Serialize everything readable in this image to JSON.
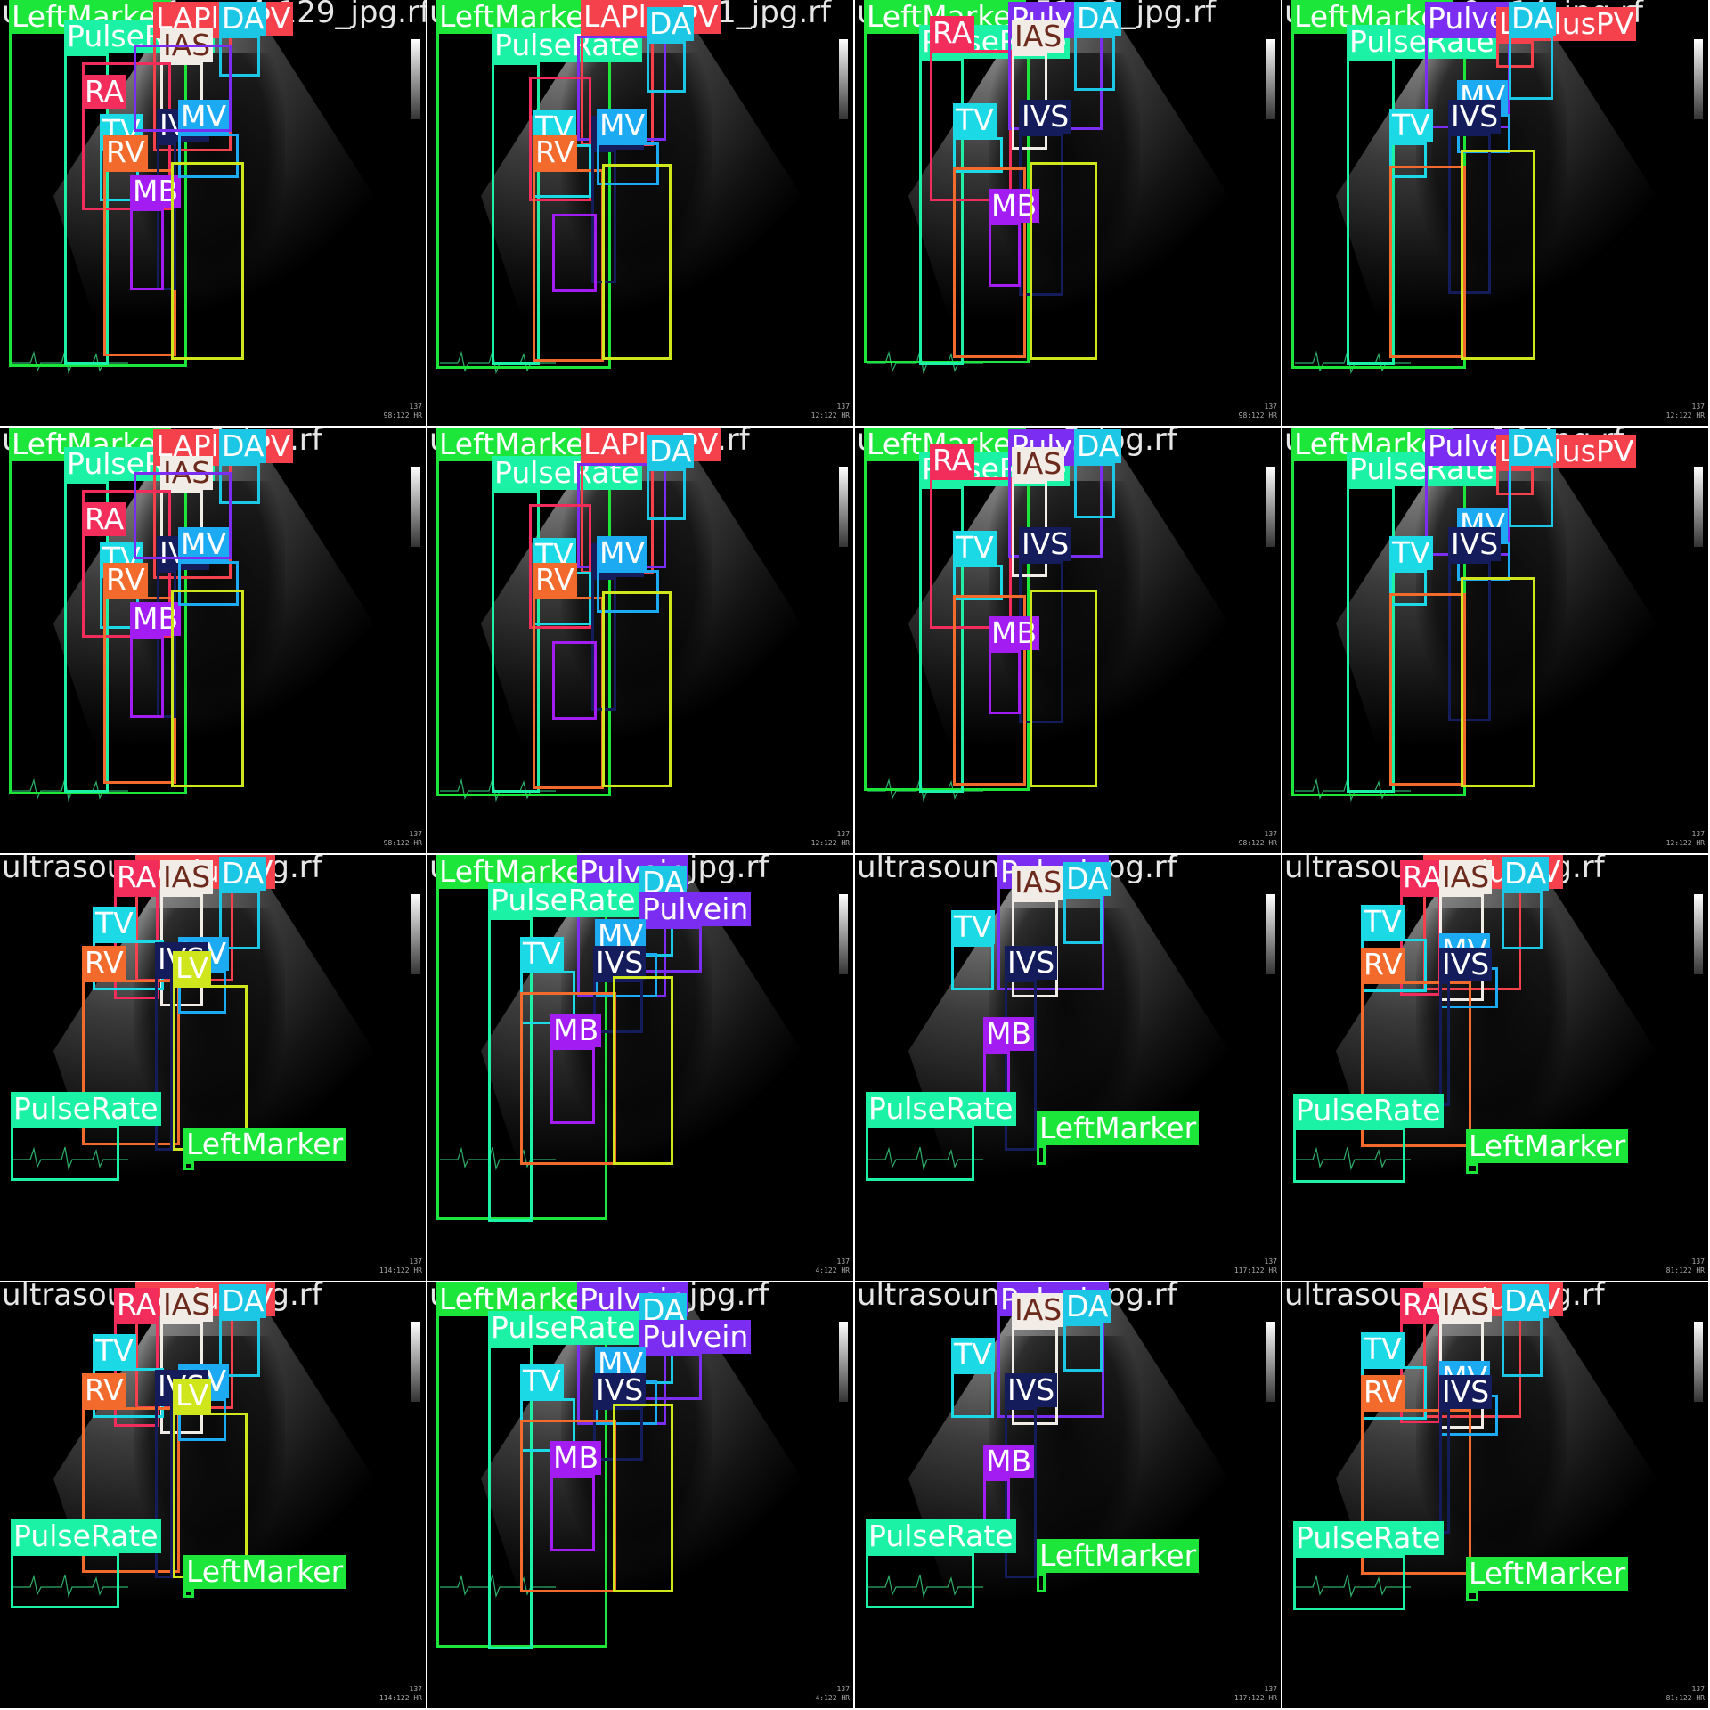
{
  "class_colors": {
    "LeftMarker": "#1ce63a",
    "PulseRate": "#1cf2a6",
    "LAPlusPV": "#f5414c",
    "DA": "#1cc7e6",
    "IAS": "#f2ece6",
    "RA": "#f22d5c",
    "TV": "#1cd9e6",
    "RV": "#f26b2d",
    "IVS": "#141c5c",
    "MB": "#a31cf2",
    "MV": "#1caaf2",
    "Pulvein": "#7b2df2",
    "LV": "#cfe61c"
  },
  "tiles": [
    {
      "filename": "ultrasound1_mp4-129_jpg.rf",
      "readout": [
        "137",
        "98:122 HR"
      ]
    },
    {
      "filename": "ultrasound_6f...94_1_jpg.rf",
      "readout": [
        "137",
        "12:122 HR"
      ]
    },
    {
      "filename": "ultrasound_51...2_jpg.rf",
      "readout": [
        "137",
        "98:122 HR"
      ]
    },
    {
      "filename": "ultrasound_0...14_jpg.rf",
      "readout": [
        "137",
        "12:122 HR"
      ]
    },
    {
      "filename": "ultrasound_...9_jpg.rf",
      "readout": [
        "137",
        "98:122 HR"
      ]
    },
    {
      "filename": "ultrasound_...1_jpg.rf",
      "readout": [
        "137",
        "12:122 HR"
      ]
    },
    {
      "filename": "ultrasound_...2_jpg.rf",
      "readout": [
        "137",
        "98:122 HR"
      ]
    },
    {
      "filename": "ultrasound_...14_jpg.rf",
      "readout": [
        "137",
        "12:122 HR"
      ]
    },
    {
      "filename": "ultrasound_...0_jpg.rf",
      "readout": [
        "137",
        "114:122 HR"
      ]
    },
    {
      "filename": "ultrasound_...37_jpg.rf",
      "readout": [
        "137",
        "4:122 HR"
      ]
    },
    {
      "filename": "ultrasound_...3_jpg.rf",
      "readout": [
        "137",
        "117:122 HR"
      ]
    },
    {
      "filename": "ultrasound_...4_jpg.rf",
      "readout": [
        "137",
        "81:122 HR"
      ]
    },
    {
      "filename": "ultrasound_...0_jpg.rf",
      "readout": [
        "137",
        "114:122 HR"
      ]
    },
    {
      "filename": "ultrasound_...37_jpg.rf",
      "readout": [
        "137",
        "4:122 HR"
      ]
    },
    {
      "filename": "ultrasound_...3_jpg.rf",
      "readout": [
        "137",
        "117:122 HR"
      ]
    },
    {
      "filename": "ultrasound_...4_jpg.rf",
      "readout": [
        "137",
        "81:122 HR"
      ]
    }
  ]
}
